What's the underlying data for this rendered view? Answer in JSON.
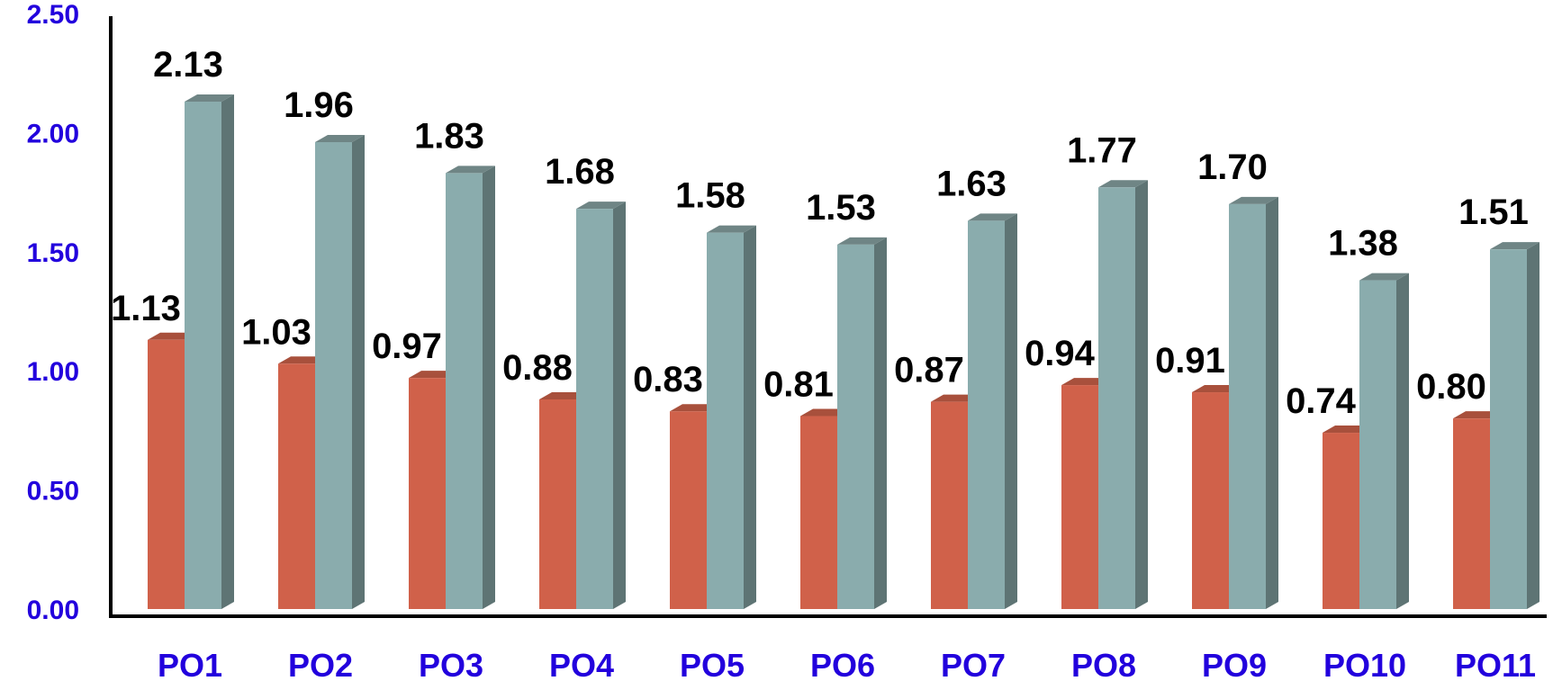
{
  "chart_data": {
    "type": "bar",
    "categories": [
      "PO1",
      "PO2",
      "PO3",
      "PO4",
      "PO5",
      "PO6",
      "PO7",
      "PO8",
      "PO9",
      "PO10",
      "PO11"
    ],
    "series": [
      {
        "values": [
          1.13,
          1.03,
          0.97,
          0.88,
          0.83,
          0.81,
          0.87,
          0.94,
          0.91,
          0.74,
          0.8
        ],
        "color": "#d0614a"
      },
      {
        "values": [
          2.13,
          1.96,
          1.83,
          1.68,
          1.58,
          1.53,
          1.63,
          1.77,
          1.7,
          1.38,
          1.51
        ],
        "color": "#8aacad"
      }
    ],
    "y_tick_labels": [
      "0.00",
      "0.50",
      "1.00",
      "1.50",
      "2.00",
      "2.50"
    ],
    "ylim": [
      0,
      2.5
    ],
    "title": "",
    "xlabel": "",
    "ylabel": "",
    "grid": false,
    "legend": "none",
    "style": "3d-bar"
  }
}
